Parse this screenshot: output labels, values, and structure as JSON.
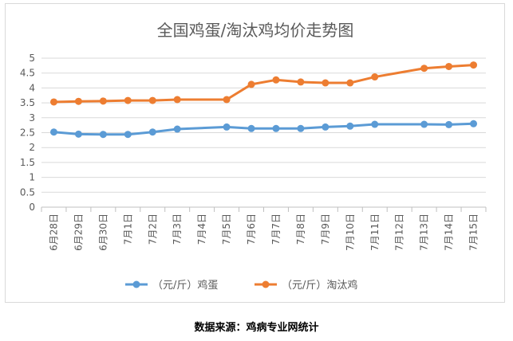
{
  "chart_data": {
    "type": "line",
    "title": "全国鸡蛋/淘汰鸡均价走势图",
    "categories": [
      "6月28日",
      "6月29日",
      "6月30日",
      "7月1日",
      "7月2日",
      "7月3日",
      "7月4日",
      "7月5日",
      "7月6日",
      "7月7日",
      "7月8日",
      "7月9日",
      "7月10日",
      "7月11日",
      "7月12日",
      "7月13日",
      "7月14日",
      "7月15日"
    ],
    "series": [
      {
        "name": "（元/斤）鸡蛋",
        "color": "#5b9bd5",
        "values": [
          2.52,
          2.45,
          2.44,
          2.44,
          2.52,
          2.62,
          null,
          2.69,
          2.64,
          2.64,
          2.64,
          2.69,
          2.72,
          2.78,
          null,
          2.78,
          2.77,
          2.8
        ]
      },
      {
        "name": "（元/斤）淘汰鸡",
        "color": "#ed7d31",
        "values": [
          3.53,
          3.55,
          3.56,
          3.58,
          3.58,
          3.61,
          null,
          3.61,
          4.12,
          4.27,
          4.2,
          4.17,
          4.17,
          4.37,
          null,
          4.66,
          4.72,
          4.77
        ]
      }
    ],
    "yticks": [
      "0",
      "0.5",
      "1",
      "1.5",
      "2",
      "2.5",
      "3",
      "3.5",
      "4",
      "4.5",
      "5"
    ],
    "ylim": [
      0,
      5
    ],
    "grid": true,
    "legend": "bottom"
  },
  "source_note": "数据来源：鸡病专业网统计"
}
